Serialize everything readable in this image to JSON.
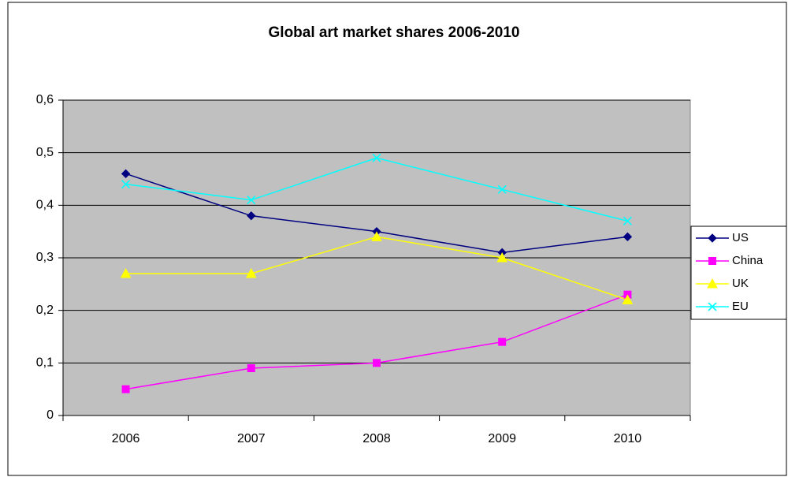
{
  "chart_data": {
    "type": "line",
    "title": "Global art market shares 2006-2010",
    "categories": [
      "2006",
      "2007",
      "2008",
      "2009",
      "2010"
    ],
    "series": [
      {
        "name": "US",
        "color": "#000080",
        "marker": "diamond",
        "values": [
          0.46,
          0.38,
          0.35,
          0.31,
          0.34
        ]
      },
      {
        "name": "China",
        "color": "#ff00ff",
        "marker": "square",
        "values": [
          0.05,
          0.09,
          0.1,
          0.14,
          0.23
        ]
      },
      {
        "name": "UK",
        "color": "#ffff00",
        "marker": "triangle",
        "values": [
          0.27,
          0.27,
          0.34,
          0.3,
          0.22
        ]
      },
      {
        "name": "EU",
        "color": "#00ffff",
        "marker": "x",
        "values": [
          0.44,
          0.41,
          0.49,
          0.43,
          0.37
        ]
      }
    ],
    "ylim": [
      0,
      0.6
    ],
    "yticks": [
      0,
      {
        "value": 0.1,
        "label": "0,1"
      },
      {
        "value": 0.2,
        "label": "0,2"
      },
      {
        "value": 0.3,
        "label": "0,3"
      },
      {
        "value": 0.4,
        "label": "0,4"
      },
      {
        "value": 0.5,
        "label": "0,5"
      },
      {
        "value": 0.6,
        "label": "0,6"
      }
    ],
    "grid": true,
    "legend": "right",
    "plot_background": "#c0c0c0"
  }
}
